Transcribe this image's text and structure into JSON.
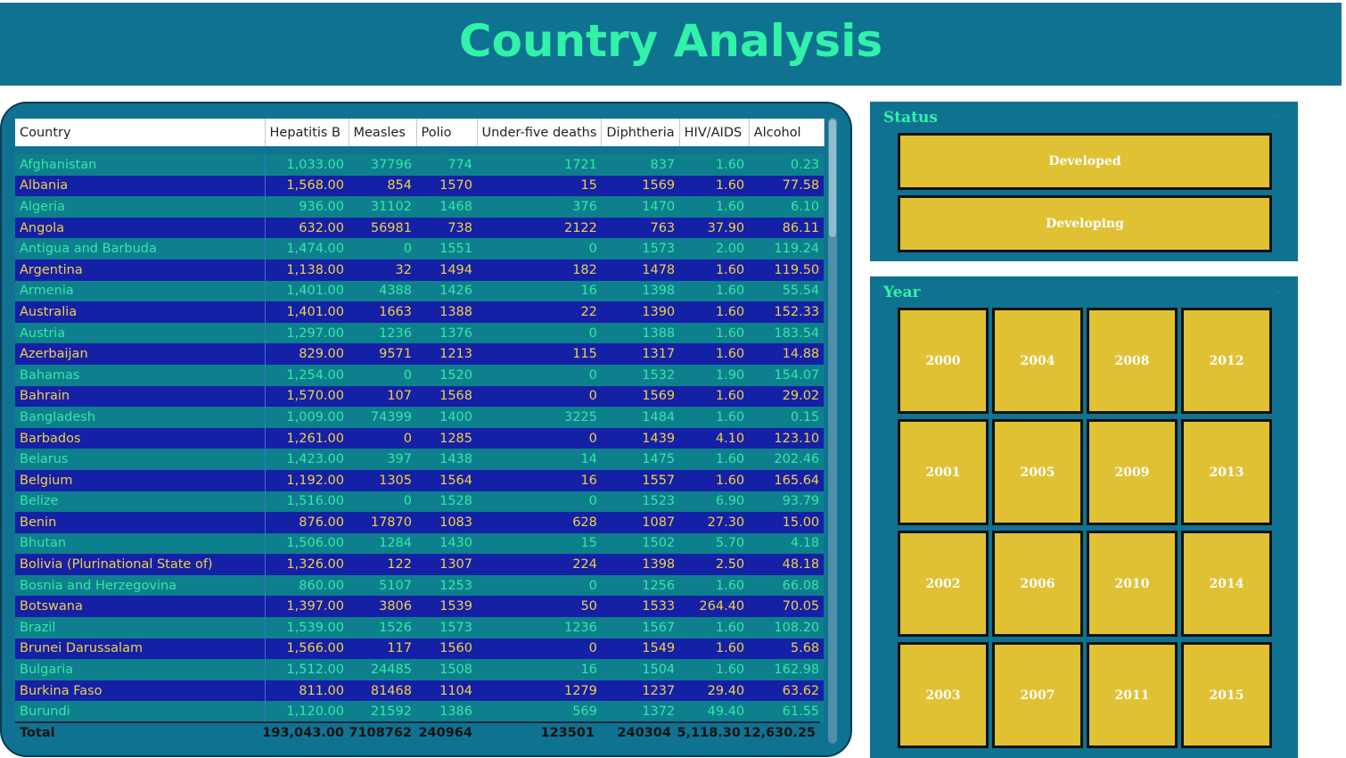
{
  "header": {
    "title": "Country Analysis"
  },
  "table": {
    "columns": [
      "Country",
      "Hepatitis B",
      "Measles",
      "Polio",
      "Under-five deaths",
      "Diphtheria",
      "HIV/AIDS",
      "Alcohol"
    ],
    "rows": [
      [
        "Afghanistan",
        "1,033.00",
        "37796",
        "774",
        "1721",
        "837",
        "1.60",
        "0.23"
      ],
      [
        "Albania",
        "1,568.00",
        "854",
        "1570",
        "15",
        "1569",
        "1.60",
        "77.58"
      ],
      [
        "Algeria",
        "936.00",
        "31102",
        "1468",
        "376",
        "1470",
        "1.60",
        "6.10"
      ],
      [
        "Angola",
        "632.00",
        "56981",
        "738",
        "2122",
        "763",
        "37.90",
        "86.11"
      ],
      [
        "Antigua and Barbuda",
        "1,474.00",
        "0",
        "1551",
        "0",
        "1573",
        "2.00",
        "119.24"
      ],
      [
        "Argentina",
        "1,138.00",
        "32",
        "1494",
        "182",
        "1478",
        "1.60",
        "119.50"
      ],
      [
        "Armenia",
        "1,401.00",
        "4388",
        "1426",
        "16",
        "1398",
        "1.60",
        "55.54"
      ],
      [
        "Australia",
        "1,401.00",
        "1663",
        "1388",
        "22",
        "1390",
        "1.60",
        "152.33"
      ],
      [
        "Austria",
        "1,297.00",
        "1236",
        "1376",
        "0",
        "1388",
        "1.60",
        "183.54"
      ],
      [
        "Azerbaijan",
        "829.00",
        "9571",
        "1213",
        "115",
        "1317",
        "1.60",
        "14.88"
      ],
      [
        "Bahamas",
        "1,254.00",
        "0",
        "1520",
        "0",
        "1532",
        "1.90",
        "154.07"
      ],
      [
        "Bahrain",
        "1,570.00",
        "107",
        "1568",
        "0",
        "1569",
        "1.60",
        "29.02"
      ],
      [
        "Bangladesh",
        "1,009.00",
        "74399",
        "1400",
        "3225",
        "1484",
        "1.60",
        "0.15"
      ],
      [
        "Barbados",
        "1,261.00",
        "0",
        "1285",
        "0",
        "1439",
        "4.10",
        "123.10"
      ],
      [
        "Belarus",
        "1,423.00",
        "397",
        "1438",
        "14",
        "1475",
        "1.60",
        "202.46"
      ],
      [
        "Belgium",
        "1,192.00",
        "1305",
        "1564",
        "16",
        "1557",
        "1.60",
        "165.64"
      ],
      [
        "Belize",
        "1,516.00",
        "0",
        "1528",
        "0",
        "1523",
        "6.90",
        "93.79"
      ],
      [
        "Benin",
        "876.00",
        "17870",
        "1083",
        "628",
        "1087",
        "27.30",
        "15.00"
      ],
      [
        "Bhutan",
        "1,506.00",
        "1284",
        "1430",
        "15",
        "1502",
        "5.70",
        "4.18"
      ],
      [
        "Bolivia (Plurinational State of)",
        "1,326.00",
        "122",
        "1307",
        "224",
        "1398",
        "2.50",
        "48.18"
      ],
      [
        "Bosnia and Herzegovina",
        "860.00",
        "5107",
        "1253",
        "0",
        "1256",
        "1.60",
        "66.08"
      ],
      [
        "Botswana",
        "1,397.00",
        "3806",
        "1539",
        "50",
        "1533",
        "264.40",
        "70.05"
      ],
      [
        "Brazil",
        "1,539.00",
        "1526",
        "1573",
        "1236",
        "1567",
        "1.60",
        "108.20"
      ],
      [
        "Brunei Darussalam",
        "1,566.00",
        "117",
        "1560",
        "0",
        "1549",
        "1.60",
        "5.68"
      ],
      [
        "Bulgaria",
        "1,512.00",
        "24485",
        "1508",
        "16",
        "1504",
        "1.60",
        "162.98"
      ],
      [
        "Burkina Faso",
        "811.00",
        "81468",
        "1104",
        "1279",
        "1237",
        "29.40",
        "63.62"
      ],
      [
        "Burundi",
        "1,120.00",
        "21592",
        "1386",
        "569",
        "1372",
        "49.40",
        "61.55"
      ]
    ],
    "total": [
      "Total",
      "193,043.00",
      "7108762",
      "240964",
      "123501",
      "240304",
      "5,118.30",
      "12,630.25"
    ]
  },
  "status_slicer": {
    "title": "Status",
    "options": [
      "Developed",
      "Developing"
    ]
  },
  "year_slicer": {
    "title": "Year",
    "options": [
      [
        "2000",
        "2004",
        "2008",
        "2012"
      ],
      [
        "2001",
        "2005",
        "2009",
        "2013"
      ],
      [
        "2002",
        "2006",
        "2010",
        "2014"
      ],
      [
        "2003",
        "2007",
        "2011",
        "2015"
      ]
    ]
  },
  "colors": {
    "header_bg": "#107291",
    "title": "#31f2a8",
    "row_odd_bg": "#0e7f8c",
    "row_odd_text": "#33e8a9",
    "row_even_bg": "#1420a6",
    "row_even_text": "#f3d048",
    "slicer_button": "#e1c134"
  },
  "icons": {
    "slicer_chevron": "chevron-down-icon"
  }
}
